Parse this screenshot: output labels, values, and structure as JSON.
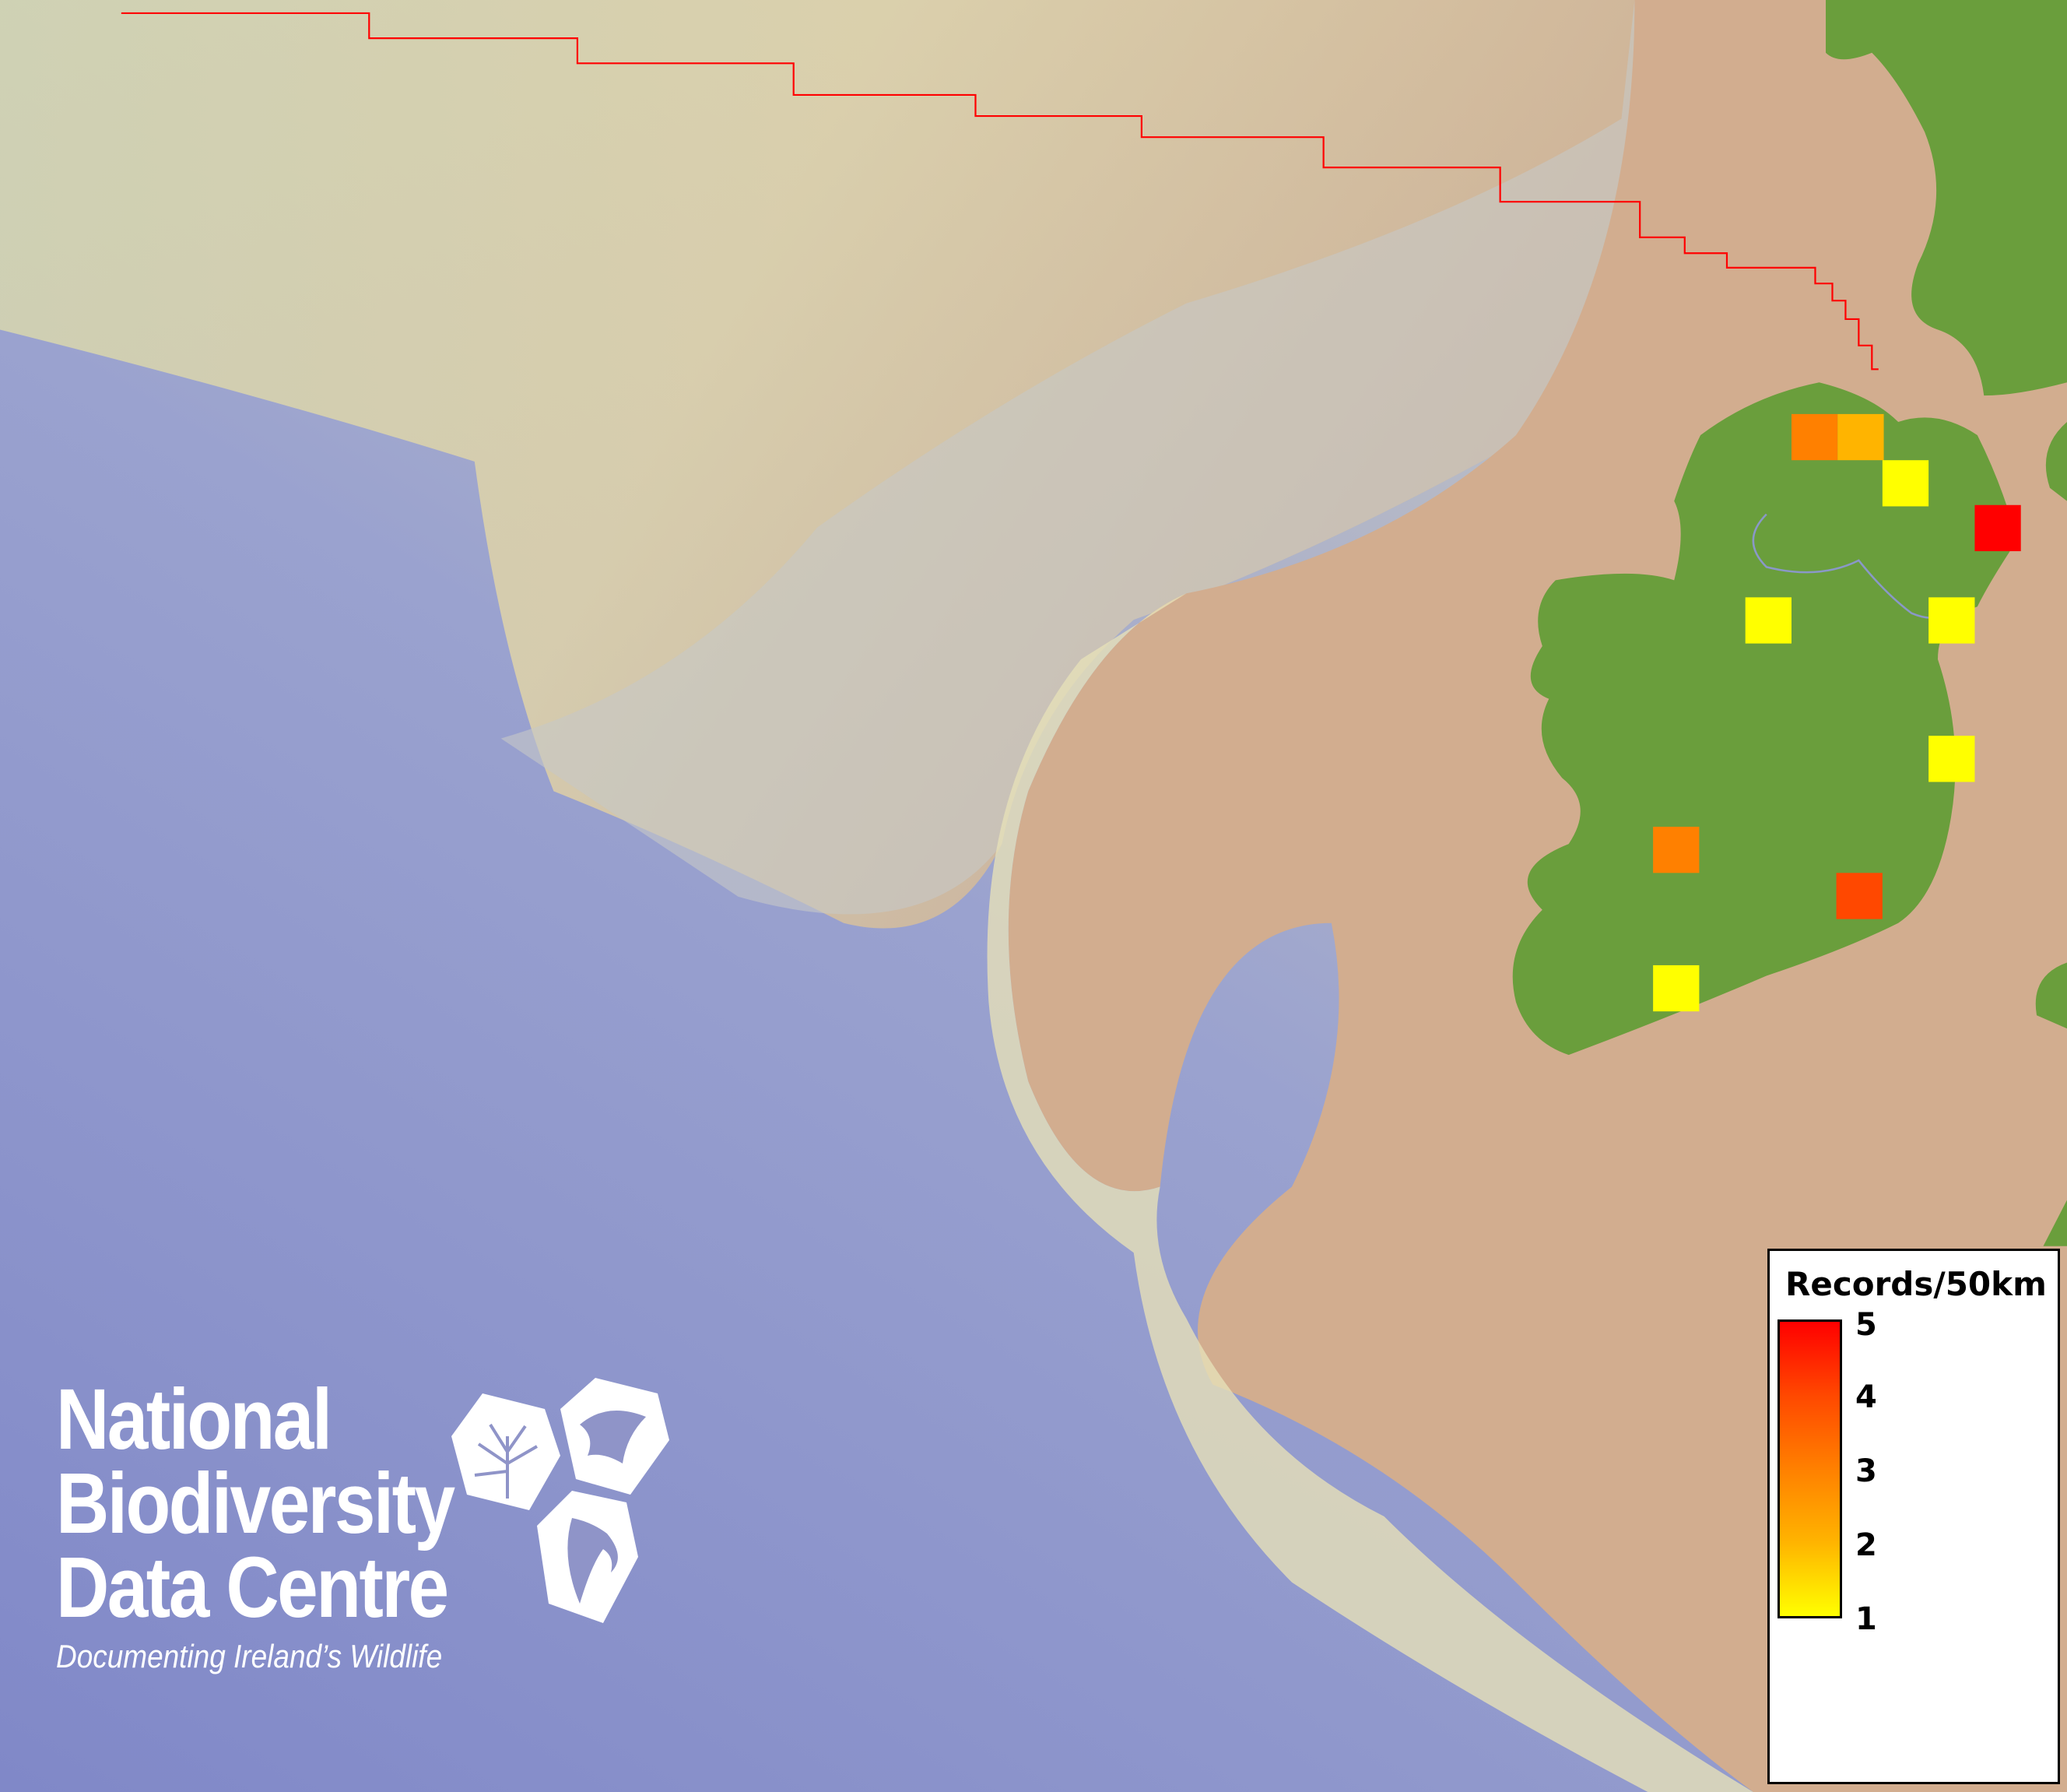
{
  "legend": {
    "title": "Records/50km",
    "ticks": [
      "5",
      "4",
      "3",
      "2",
      "1"
    ],
    "scale_min": 1,
    "scale_max": 5,
    "colors": {
      "min": "#ffff00",
      "max": "#ff0000"
    }
  },
  "logo": {
    "line1": "National",
    "line2": "Biodiversity",
    "line3": "Data Centre",
    "tagline": "Documenting Ireland’s Wildlife",
    "icons": [
      "tree-icon",
      "butterfly-icon",
      "seahorse-icon"
    ]
  },
  "map": {
    "boundary_color": "#ff0000",
    "land_color": "#6a9e3c",
    "records": [
      3,
      2,
      1,
      5,
      1,
      1,
      1,
      3,
      4,
      1
    ]
  }
}
